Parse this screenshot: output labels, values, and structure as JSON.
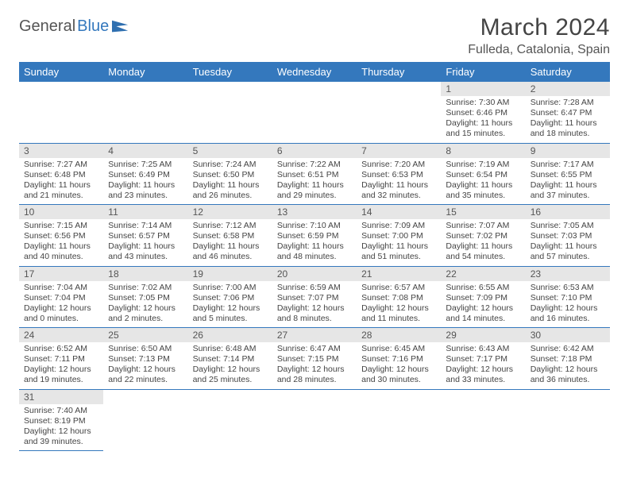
{
  "logo": {
    "general": "General",
    "blue": "Blue"
  },
  "title": {
    "month": "March 2024",
    "location": "Fulleda, Catalonia, Spain"
  },
  "weekdays": [
    "Sunday",
    "Monday",
    "Tuesday",
    "Wednesday",
    "Thursday",
    "Friday",
    "Saturday"
  ],
  "colors": {
    "header_bg": "#3478bd",
    "header_fg": "#ffffff",
    "daynum_bg": "#e6e6e6",
    "row_border": "#3478bd",
    "text": "#444444"
  },
  "layout": {
    "first_weekday_index": 5,
    "days_in_month": 31
  },
  "days": {
    "1": {
      "sunrise": "Sunrise: 7:30 AM",
      "sunset": "Sunset: 6:46 PM",
      "daylight": "Daylight: 11 hours and 15 minutes."
    },
    "2": {
      "sunrise": "Sunrise: 7:28 AM",
      "sunset": "Sunset: 6:47 PM",
      "daylight": "Daylight: 11 hours and 18 minutes."
    },
    "3": {
      "sunrise": "Sunrise: 7:27 AM",
      "sunset": "Sunset: 6:48 PM",
      "daylight": "Daylight: 11 hours and 21 minutes."
    },
    "4": {
      "sunrise": "Sunrise: 7:25 AM",
      "sunset": "Sunset: 6:49 PM",
      "daylight": "Daylight: 11 hours and 23 minutes."
    },
    "5": {
      "sunrise": "Sunrise: 7:24 AM",
      "sunset": "Sunset: 6:50 PM",
      "daylight": "Daylight: 11 hours and 26 minutes."
    },
    "6": {
      "sunrise": "Sunrise: 7:22 AM",
      "sunset": "Sunset: 6:51 PM",
      "daylight": "Daylight: 11 hours and 29 minutes."
    },
    "7": {
      "sunrise": "Sunrise: 7:20 AM",
      "sunset": "Sunset: 6:53 PM",
      "daylight": "Daylight: 11 hours and 32 minutes."
    },
    "8": {
      "sunrise": "Sunrise: 7:19 AM",
      "sunset": "Sunset: 6:54 PM",
      "daylight": "Daylight: 11 hours and 35 minutes."
    },
    "9": {
      "sunrise": "Sunrise: 7:17 AM",
      "sunset": "Sunset: 6:55 PM",
      "daylight": "Daylight: 11 hours and 37 minutes."
    },
    "10": {
      "sunrise": "Sunrise: 7:15 AM",
      "sunset": "Sunset: 6:56 PM",
      "daylight": "Daylight: 11 hours and 40 minutes."
    },
    "11": {
      "sunrise": "Sunrise: 7:14 AM",
      "sunset": "Sunset: 6:57 PM",
      "daylight": "Daylight: 11 hours and 43 minutes."
    },
    "12": {
      "sunrise": "Sunrise: 7:12 AM",
      "sunset": "Sunset: 6:58 PM",
      "daylight": "Daylight: 11 hours and 46 minutes."
    },
    "13": {
      "sunrise": "Sunrise: 7:10 AM",
      "sunset": "Sunset: 6:59 PM",
      "daylight": "Daylight: 11 hours and 48 minutes."
    },
    "14": {
      "sunrise": "Sunrise: 7:09 AM",
      "sunset": "Sunset: 7:00 PM",
      "daylight": "Daylight: 11 hours and 51 minutes."
    },
    "15": {
      "sunrise": "Sunrise: 7:07 AM",
      "sunset": "Sunset: 7:02 PM",
      "daylight": "Daylight: 11 hours and 54 minutes."
    },
    "16": {
      "sunrise": "Sunrise: 7:05 AM",
      "sunset": "Sunset: 7:03 PM",
      "daylight": "Daylight: 11 hours and 57 minutes."
    },
    "17": {
      "sunrise": "Sunrise: 7:04 AM",
      "sunset": "Sunset: 7:04 PM",
      "daylight": "Daylight: 12 hours and 0 minutes."
    },
    "18": {
      "sunrise": "Sunrise: 7:02 AM",
      "sunset": "Sunset: 7:05 PM",
      "daylight": "Daylight: 12 hours and 2 minutes."
    },
    "19": {
      "sunrise": "Sunrise: 7:00 AM",
      "sunset": "Sunset: 7:06 PM",
      "daylight": "Daylight: 12 hours and 5 minutes."
    },
    "20": {
      "sunrise": "Sunrise: 6:59 AM",
      "sunset": "Sunset: 7:07 PM",
      "daylight": "Daylight: 12 hours and 8 minutes."
    },
    "21": {
      "sunrise": "Sunrise: 6:57 AM",
      "sunset": "Sunset: 7:08 PM",
      "daylight": "Daylight: 12 hours and 11 minutes."
    },
    "22": {
      "sunrise": "Sunrise: 6:55 AM",
      "sunset": "Sunset: 7:09 PM",
      "daylight": "Daylight: 12 hours and 14 minutes."
    },
    "23": {
      "sunrise": "Sunrise: 6:53 AM",
      "sunset": "Sunset: 7:10 PM",
      "daylight": "Daylight: 12 hours and 16 minutes."
    },
    "24": {
      "sunrise": "Sunrise: 6:52 AM",
      "sunset": "Sunset: 7:11 PM",
      "daylight": "Daylight: 12 hours and 19 minutes."
    },
    "25": {
      "sunrise": "Sunrise: 6:50 AM",
      "sunset": "Sunset: 7:13 PM",
      "daylight": "Daylight: 12 hours and 22 minutes."
    },
    "26": {
      "sunrise": "Sunrise: 6:48 AM",
      "sunset": "Sunset: 7:14 PM",
      "daylight": "Daylight: 12 hours and 25 minutes."
    },
    "27": {
      "sunrise": "Sunrise: 6:47 AM",
      "sunset": "Sunset: 7:15 PM",
      "daylight": "Daylight: 12 hours and 28 minutes."
    },
    "28": {
      "sunrise": "Sunrise: 6:45 AM",
      "sunset": "Sunset: 7:16 PM",
      "daylight": "Daylight: 12 hours and 30 minutes."
    },
    "29": {
      "sunrise": "Sunrise: 6:43 AM",
      "sunset": "Sunset: 7:17 PM",
      "daylight": "Daylight: 12 hours and 33 minutes."
    },
    "30": {
      "sunrise": "Sunrise: 6:42 AM",
      "sunset": "Sunset: 7:18 PM",
      "daylight": "Daylight: 12 hours and 36 minutes."
    },
    "31": {
      "sunrise": "Sunrise: 7:40 AM",
      "sunset": "Sunset: 8:19 PM",
      "daylight": "Daylight: 12 hours and 39 minutes."
    }
  }
}
